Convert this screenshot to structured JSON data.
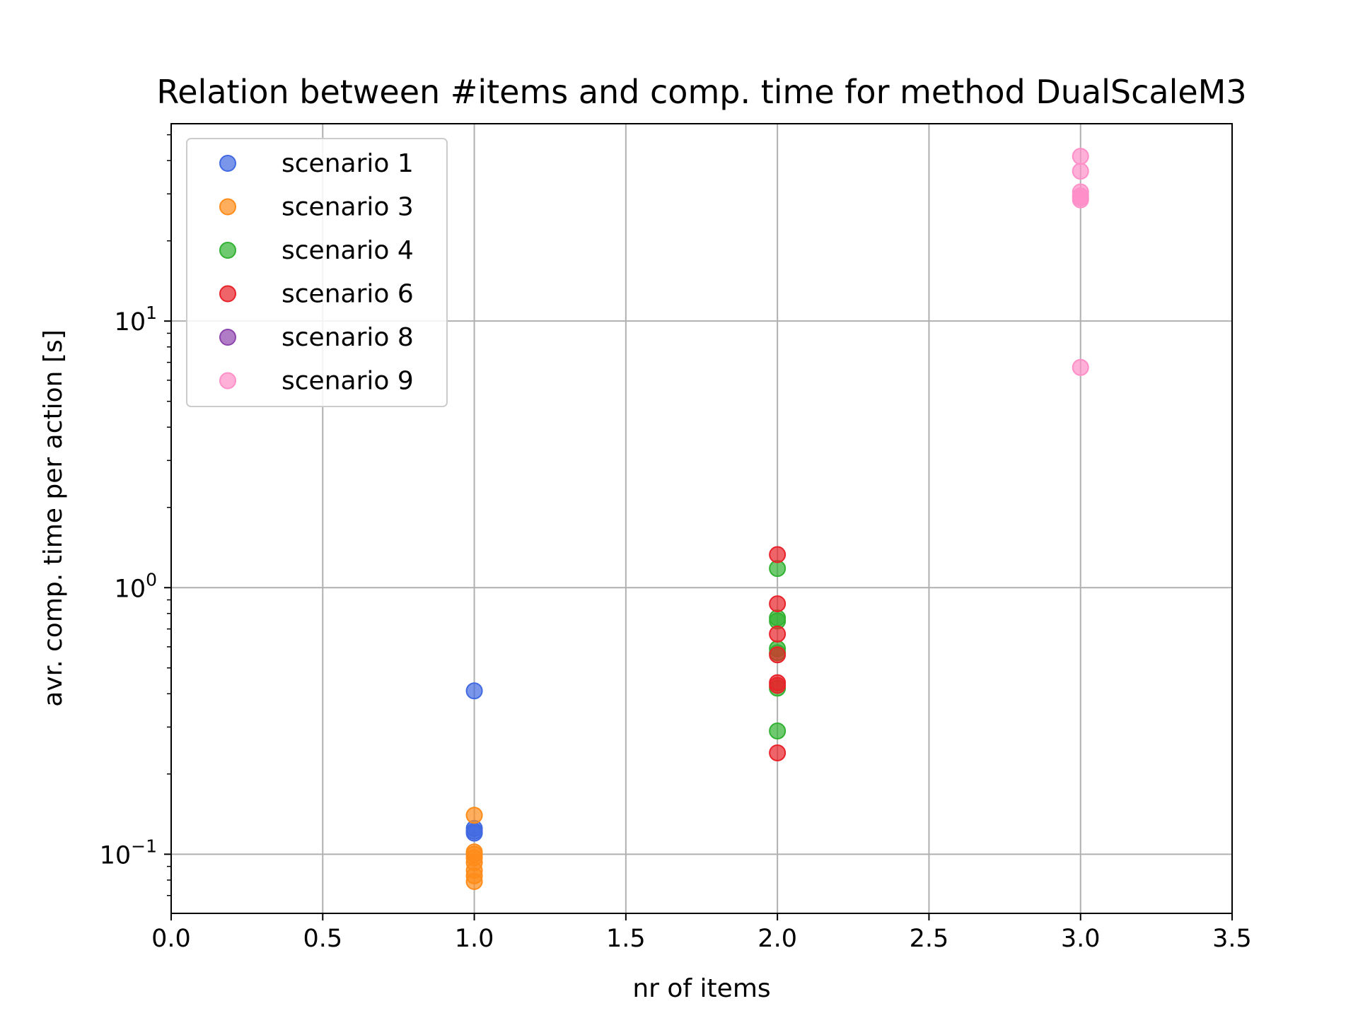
{
  "chart_data": {
    "type": "scatter",
    "title": "Relation between #items and comp. time for method DualScaleM3",
    "xlabel": "nr of items",
    "ylabel": "avr. comp. time per action [s]",
    "xlim": [
      0.0,
      3.5
    ],
    "ylim": [
      0.06,
      55
    ],
    "yscale": "log",
    "grid": true,
    "legend_position": "upper-left",
    "x_ticks": [
      0.0,
      0.5,
      1.0,
      1.5,
      2.0,
      2.5,
      3.0,
      3.5
    ],
    "x_tick_labels": [
      "0.0",
      "0.5",
      "1.0",
      "1.5",
      "2.0",
      "2.5",
      "3.0",
      "3.5"
    ],
    "y_ticks": [
      {
        "value": 0.1,
        "base": "10",
        "exp": "−1"
      },
      {
        "value": 1,
        "base": "10",
        "exp": "0"
      },
      {
        "value": 10,
        "base": "10",
        "exp": "1"
      }
    ],
    "series": [
      {
        "name": "scenario 1",
        "color": "#4169E1",
        "x": [
          1,
          1,
          1,
          1
        ],
        "y": [
          0.41,
          0.125,
          0.122,
          0.12
        ]
      },
      {
        "name": "scenario 3",
        "color": "#FF8C1A",
        "x": [
          1,
          1,
          1,
          1,
          1,
          1,
          1,
          1
        ],
        "y": [
          0.14,
          0.102,
          0.1,
          0.097,
          0.093,
          0.087,
          0.083,
          0.079
        ]
      },
      {
        "name": "scenario 4",
        "color": "#32B232",
        "x": [
          2,
          2,
          2,
          2,
          2,
          2,
          2
        ],
        "y": [
          1.18,
          0.77,
          0.75,
          0.59,
          0.57,
          0.42,
          0.29
        ]
      },
      {
        "name": "scenario 6",
        "color": "#E8222A",
        "x": [
          2,
          2,
          2,
          2,
          2,
          2,
          2
        ],
        "y": [
          1.33,
          0.87,
          0.67,
          0.56,
          0.44,
          0.43,
          0.24
        ]
      },
      {
        "name": "scenario 8",
        "color": "#8E44AD",
        "x": [],
        "y": []
      },
      {
        "name": "scenario 9",
        "color": "#FF8FC8",
        "x": [
          3,
          3,
          3,
          3,
          3,
          3,
          3
        ],
        "y": [
          41.5,
          36.5,
          30.5,
          29.5,
          29.0,
          28.5,
          6.7
        ]
      }
    ]
  }
}
